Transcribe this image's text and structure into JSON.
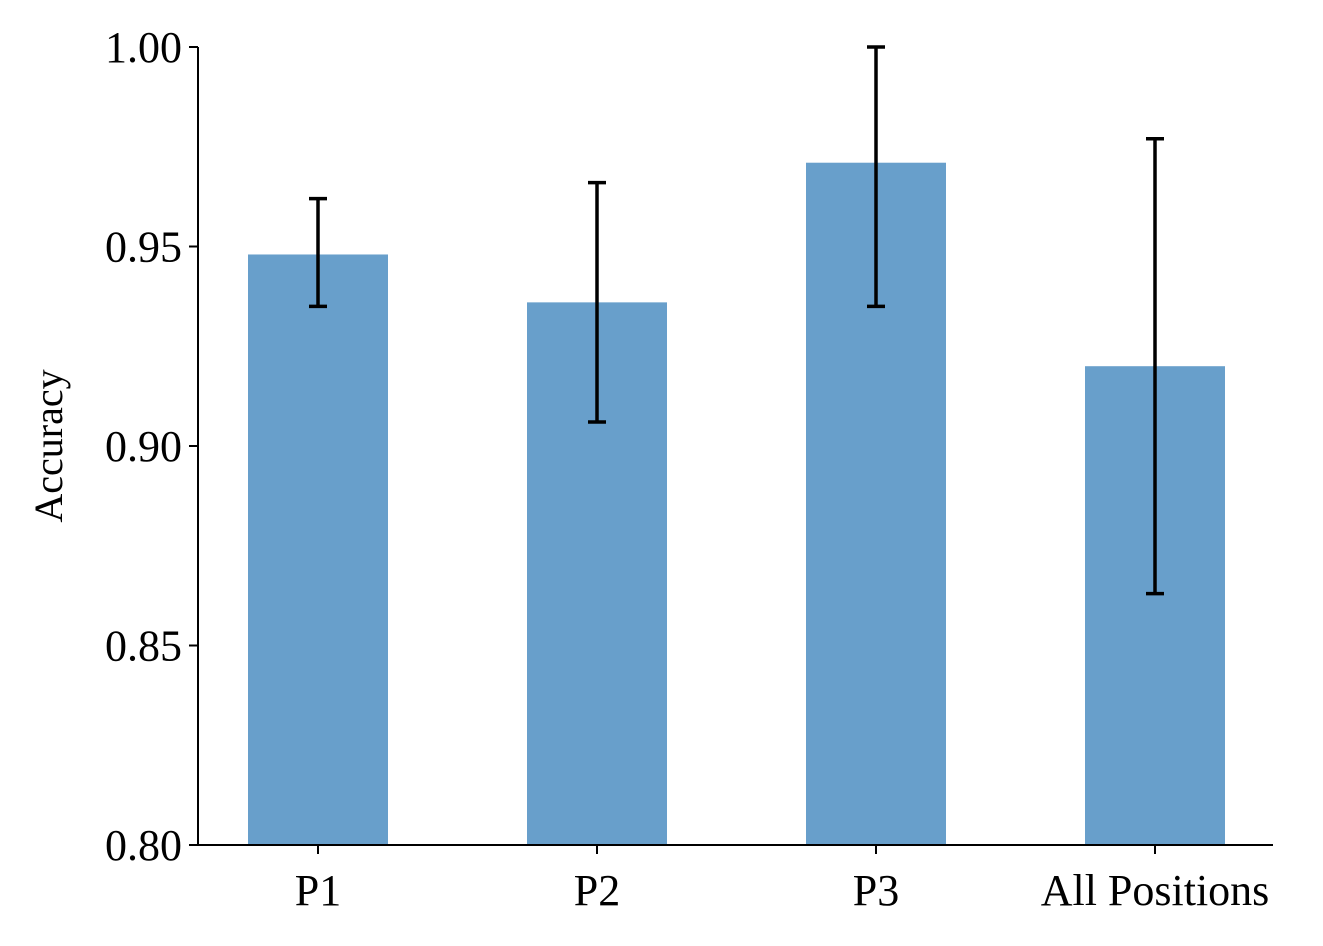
{
  "chart_data": {
    "type": "bar",
    "title": "",
    "xlabel": "",
    "ylabel": "Accuracy",
    "categories": [
      "P1",
      "P2",
      "P3",
      "All Positions"
    ],
    "values": [
      0.948,
      0.936,
      0.971,
      0.92
    ],
    "error_upper": [
      0.962,
      0.966,
      1.0,
      0.977
    ],
    "error_lower": [
      0.935,
      0.906,
      0.935,
      0.863
    ],
    "ylim": [
      0.8,
      1.0
    ],
    "yticks": [
      0.8,
      0.85,
      0.9,
      0.95,
      1.0
    ],
    "ytick_labels": [
      "0.80",
      "0.85",
      "0.90",
      "0.95",
      "1.00"
    ],
    "bar_color": "#689fcb",
    "error_color": "#000000",
    "grid": false,
    "legend": "none"
  }
}
